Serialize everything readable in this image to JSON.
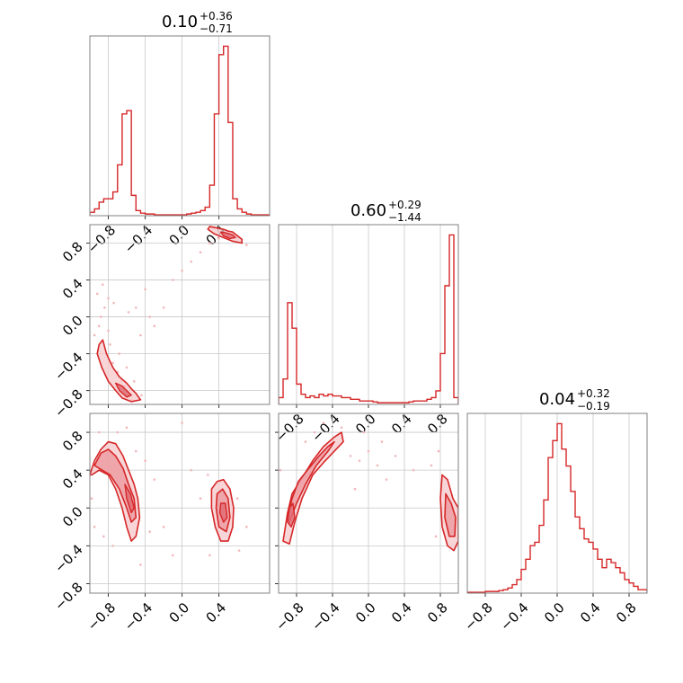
{
  "figure": {
    "type": "corner",
    "colors": {
      "line": "#d62728",
      "fill_light": "#f6c8cb",
      "fill_mid": "#ec9aa0",
      "fill_dark": "#e06c74",
      "grid": "#c8c8c8",
      "frame": "#808080"
    },
    "grid": true
  },
  "chart_data": [
    {
      "type": "histogram",
      "panel": "diag-0",
      "title": {
        "value": "0.10",
        "plus": "+0.36",
        "minus": "−0.71"
      },
      "xlim": [
        -1.0,
        0.95
      ],
      "x": [
        -1.0,
        -0.95,
        -0.9,
        -0.85,
        -0.8,
        -0.75,
        -0.7,
        -0.65,
        -0.6,
        -0.55,
        -0.5,
        -0.45,
        -0.4,
        -0.35,
        -0.3,
        -0.25,
        -0.2,
        -0.15,
        -0.1,
        -0.05,
        0.0,
        0.05,
        0.1,
        0.15,
        0.2,
        0.25,
        0.3,
        0.35,
        0.4,
        0.45,
        0.5,
        0.55,
        0.6,
        0.65,
        0.7,
        0.75,
        0.8,
        0.85,
        0.9
      ],
      "values": [
        0.02,
        0.04,
        0.08,
        0.1,
        0.1,
        0.14,
        0.3,
        0.6,
        0.62,
        0.12,
        0.03,
        0.015,
        0.01,
        0.01,
        0.005,
        0.005,
        0.005,
        0.005,
        0.005,
        0.005,
        0.005,
        0.01,
        0.015,
        0.02,
        0.03,
        0.05,
        0.18,
        0.6,
        0.95,
        1.0,
        0.55,
        0.1,
        0.04,
        0.02,
        0.01,
        0.005,
        0.005,
        0.005,
        0.005
      ],
      "xticks": [
        "−0.8",
        "−0.4",
        "0.0",
        "0.4"
      ]
    },
    {
      "type": "histogram",
      "panel": "diag-1",
      "title": {
        "value": "0.60",
        "plus": "+0.29",
        "minus": "−1.44"
      },
      "xlim": [
        -1.0,
        1.0
      ],
      "x": [
        -1.0,
        -0.95,
        -0.9,
        -0.85,
        -0.8,
        -0.75,
        -0.7,
        -0.65,
        -0.6,
        -0.55,
        -0.5,
        -0.45,
        -0.4,
        -0.35,
        -0.3,
        -0.25,
        -0.2,
        -0.15,
        -0.1,
        -0.05,
        0.0,
        0.05,
        0.1,
        0.15,
        0.2,
        0.25,
        0.3,
        0.35,
        0.4,
        0.45,
        0.5,
        0.55,
        0.6,
        0.65,
        0.7,
        0.75,
        0.8,
        0.85,
        0.9,
        0.95
      ],
      "values": [
        0.04,
        0.15,
        0.6,
        0.45,
        0.12,
        0.06,
        0.04,
        0.05,
        0.04,
        0.06,
        0.05,
        0.06,
        0.05,
        0.05,
        0.04,
        0.04,
        0.03,
        0.03,
        0.02,
        0.02,
        0.02,
        0.015,
        0.01,
        0.01,
        0.01,
        0.01,
        0.01,
        0.01,
        0.01,
        0.015,
        0.02,
        0.02,
        0.02,
        0.03,
        0.04,
        0.08,
        0.3,
        0.7,
        1.0,
        0.04
      ],
      "xticks": [
        "−0.8",
        "−0.4",
        "0.0",
        "0.4",
        "0.8"
      ]
    },
    {
      "type": "histogram",
      "panel": "diag-2",
      "title": {
        "value": "0.04",
        "plus": "+0.32",
        "minus": "−0.19"
      },
      "xlim": [
        -1.0,
        1.0
      ],
      "x": [
        -1.0,
        -0.95,
        -0.9,
        -0.85,
        -0.8,
        -0.75,
        -0.7,
        -0.65,
        -0.6,
        -0.55,
        -0.5,
        -0.45,
        -0.4,
        -0.35,
        -0.3,
        -0.25,
        -0.2,
        -0.15,
        -0.1,
        -0.05,
        0.0,
        0.05,
        0.1,
        0.15,
        0.2,
        0.25,
        0.3,
        0.35,
        0.4,
        0.45,
        0.5,
        0.55,
        0.6,
        0.65,
        0.7,
        0.75,
        0.8,
        0.85,
        0.9,
        0.95
      ],
      "values": [
        0.005,
        0.005,
        0.005,
        0.005,
        0.01,
        0.01,
        0.01,
        0.015,
        0.02,
        0.03,
        0.05,
        0.08,
        0.14,
        0.2,
        0.28,
        0.3,
        0.4,
        0.55,
        0.8,
        0.9,
        1.0,
        0.85,
        0.75,
        0.6,
        0.45,
        0.38,
        0.32,
        0.3,
        0.26,
        0.2,
        0.15,
        0.2,
        0.18,
        0.15,
        0.12,
        0.08,
        0.06,
        0.04,
        0.02,
        0.02
      ],
      "xticks": [
        "−0.8",
        "−0.4",
        "0.0",
        "0.4",
        "0.8"
      ]
    },
    {
      "type": "contour",
      "panel": "lower-1-0",
      "xlim": [
        -1.0,
        0.95
      ],
      "ylim": [
        -0.95,
        1.0
      ],
      "yticks": [
        "0.8",
        "0.4",
        "0.0",
        "−0.4",
        "−0.8"
      ],
      "levels": [
        {
          "level": "outer",
          "x": [
            0.3,
            0.35,
            0.4,
            0.45,
            0.5,
            0.55,
            0.6,
            0.65,
            0.65,
            0.55,
            0.45,
            0.35,
            0.28
          ],
          "y": [
            0.98,
            0.97,
            0.96,
            0.95,
            0.93,
            0.92,
            0.88,
            0.84,
            0.8,
            0.82,
            0.86,
            0.9,
            0.95
          ]
        },
        {
          "level": "inner",
          "x": [
            0.42,
            0.48,
            0.55,
            0.58,
            0.52,
            0.45
          ],
          "y": [
            0.92,
            0.91,
            0.89,
            0.86,
            0.85,
            0.88
          ]
        },
        {
          "level": "outer",
          "x": [
            -0.9,
            -0.86,
            -0.82,
            -0.75,
            -0.68,
            -0.6,
            -0.55,
            -0.5,
            -0.45,
            -0.55,
            -0.65,
            -0.72,
            -0.8,
            -0.87,
            -0.92
          ],
          "y": [
            -0.3,
            -0.25,
            -0.4,
            -0.55,
            -0.65,
            -0.72,
            -0.78,
            -0.83,
            -0.9,
            -0.92,
            -0.88,
            -0.8,
            -0.7,
            -0.55,
            -0.4
          ]
        },
        {
          "level": "inner",
          "x": [
            -0.72,
            -0.65,
            -0.6,
            -0.55,
            -0.6,
            -0.68
          ],
          "y": [
            -0.72,
            -0.75,
            -0.8,
            -0.85,
            -0.87,
            -0.8
          ]
        }
      ],
      "scatter": {
        "x": [
          -0.95,
          -0.9,
          -0.88,
          -0.84,
          -0.8,
          -0.78,
          -0.75,
          -0.7,
          -0.66,
          -0.62,
          -0.58,
          -0.55,
          -0.5,
          -0.45,
          -0.4,
          -0.35,
          -0.3,
          -0.2,
          -0.1,
          0.0,
          0.1,
          0.2,
          0.3,
          0.4,
          0.5,
          0.6,
          0.7,
          -0.92,
          -0.86,
          -0.8,
          -0.74,
          -0.68,
          -0.6,
          -0.52,
          -0.44
        ],
        "y": [
          -0.2,
          -0.1,
          0.0,
          0.1,
          0.2,
          -0.3,
          -0.5,
          -0.6,
          -0.7,
          -0.75,
          0.05,
          -0.9,
          0.1,
          -0.2,
          0.3,
          0.0,
          -0.1,
          0.1,
          0.4,
          0.5,
          0.6,
          0.7,
          0.8,
          0.85,
          0.9,
          0.86,
          0.78,
          0.25,
          0.35,
          -0.15,
          0.15,
          -0.4,
          -0.55,
          -0.7,
          -0.85
        ]
      }
    },
    {
      "type": "contour",
      "panel": "lower-2-0",
      "xlim": [
        -1.0,
        0.95
      ],
      "ylim": [
        -0.9,
        1.0
      ],
      "yticks": [
        "0.8",
        "0.4",
        "0.0",
        "−0.4",
        "−0.8"
      ],
      "xticks": [
        "−0.8",
        "−0.4",
        "0.0",
        "0.4"
      ],
      "levels": [
        {
          "level": "outer",
          "x": [
            -1.0,
            -0.95,
            -0.88,
            -0.8,
            -0.72,
            -0.64,
            -0.58,
            -0.52,
            -0.48,
            -0.46,
            -0.5,
            -0.55,
            -0.6,
            -0.65,
            -0.72,
            -0.8,
            -0.9,
            -0.98
          ],
          "y": [
            0.35,
            0.5,
            0.62,
            0.7,
            0.68,
            0.55,
            0.4,
            0.25,
            0.1,
            -0.1,
            -0.3,
            -0.35,
            -0.2,
            0.0,
            0.2,
            0.35,
            0.4,
            0.35
          ]
        },
        {
          "level": "mid",
          "x": [
            -0.95,
            -0.88,
            -0.8,
            -0.72,
            -0.64,
            -0.58,
            -0.52,
            -0.5,
            -0.55,
            -0.6,
            -0.68,
            -0.78,
            -0.9
          ],
          "y": [
            0.45,
            0.58,
            0.62,
            0.55,
            0.42,
            0.25,
            0.1,
            -0.1,
            -0.15,
            0.0,
            0.2,
            0.35,
            0.42
          ]
        },
        {
          "level": "inner",
          "x": [
            -0.62,
            -0.56,
            -0.52,
            -0.55,
            -0.6
          ],
          "y": [
            0.25,
            0.15,
            0.0,
            -0.05,
            0.1
          ]
        },
        {
          "level": "outer",
          "x": [
            0.32,
            0.38,
            0.45,
            0.52,
            0.56,
            0.55,
            0.5,
            0.42,
            0.36,
            0.32
          ],
          "y": [
            0.2,
            0.28,
            0.3,
            0.2,
            0.0,
            -0.2,
            -0.35,
            -0.35,
            -0.2,
            0.0
          ]
        },
        {
          "level": "mid",
          "x": [
            0.38,
            0.44,
            0.5,
            0.52,
            0.48,
            0.4,
            0.37
          ],
          "y": [
            0.15,
            0.2,
            0.1,
            -0.1,
            -0.25,
            -0.2,
            0.0
          ]
        },
        {
          "level": "inner",
          "x": [
            0.42,
            0.47,
            0.49,
            0.45,
            0.41
          ],
          "y": [
            0.05,
            0.05,
            -0.1,
            -0.15,
            -0.05
          ]
        }
      ],
      "scatter": {
        "x": [
          -0.95,
          -0.85,
          -0.75,
          -0.7,
          -0.5,
          -0.4,
          -0.3,
          -0.2,
          -0.1,
          0.0,
          0.1,
          0.2,
          0.3,
          0.6,
          0.7,
          0.62,
          0.28,
          -0.35,
          -0.45,
          -0.9,
          -0.98,
          -0.6
        ],
        "y": [
          -0.2,
          -0.3,
          -0.4,
          0.8,
          0.6,
          0.5,
          0.3,
          -0.2,
          -0.5,
          0.9,
          0.4,
          0.1,
          -0.5,
          0.1,
          -0.2,
          -0.45,
          0.35,
          -0.25,
          -0.6,
          0.8,
          0.1,
          0.85
        ]
      }
    },
    {
      "type": "contour",
      "panel": "lower-2-1",
      "xlim": [
        -1.0,
        1.0
      ],
      "ylim": [
        -0.9,
        1.0
      ],
      "xticks": [
        "−0.8",
        "−0.4",
        "0.0",
        "0.4",
        "0.8"
      ],
      "levels": [
        {
          "level": "outer",
          "x": [
            -0.95,
            -0.9,
            -0.85,
            -0.75,
            -0.62,
            -0.5,
            -0.38,
            -0.3,
            -0.28,
            -0.38,
            -0.5,
            -0.62,
            -0.74,
            -0.82,
            -0.88,
            -0.95
          ],
          "y": [
            -0.35,
            -0.05,
            0.15,
            0.3,
            0.5,
            0.65,
            0.75,
            0.8,
            0.7,
            0.6,
            0.48,
            0.35,
            0.1,
            -0.15,
            -0.38,
            -0.35
          ]
        },
        {
          "level": "mid",
          "x": [
            -0.9,
            -0.85,
            -0.78,
            -0.68,
            -0.55,
            -0.45,
            -0.38,
            -0.45,
            -0.58,
            -0.7,
            -0.8,
            -0.88
          ],
          "y": [
            -0.1,
            0.1,
            0.28,
            0.4,
            0.55,
            0.65,
            0.7,
            0.6,
            0.45,
            0.25,
            0.05,
            -0.15
          ]
        },
        {
          "level": "inner",
          "x": [
            -0.88,
            -0.84,
            -0.82,
            -0.86,
            -0.9
          ],
          "y": [
            0.0,
            0.05,
            -0.1,
            -0.2,
            -0.15
          ]
        },
        {
          "level": "outer",
          "x": [
            0.82,
            0.88,
            0.94,
            1.0,
            1.0,
            0.95,
            0.88,
            0.82,
            0.8
          ],
          "y": [
            0.35,
            0.3,
            0.1,
            0.0,
            -0.35,
            -0.45,
            -0.4,
            -0.2,
            0.1
          ]
        },
        {
          "level": "mid",
          "x": [
            0.86,
            0.92,
            0.97,
            0.96,
            0.9,
            0.85
          ],
          "y": [
            0.15,
            0.05,
            -0.1,
            -0.3,
            -0.3,
            -0.1
          ]
        }
      ],
      "scatter": {
        "x": [
          -0.98,
          -0.7,
          -0.6,
          -0.5,
          -0.3,
          -0.2,
          -0.1,
          0.0,
          0.1,
          0.2,
          0.3,
          0.5,
          0.7,
          0.75,
          0.78,
          -0.15,
          -0.05,
          0.15
        ],
        "y": [
          0.4,
          0.7,
          0.8,
          0.9,
          0.85,
          0.55,
          0.5,
          0.6,
          0.45,
          0.3,
          0.55,
          0.4,
          0.45,
          -0.3,
          0.6,
          0.2,
          0.8,
          0.7
        ]
      }
    }
  ]
}
